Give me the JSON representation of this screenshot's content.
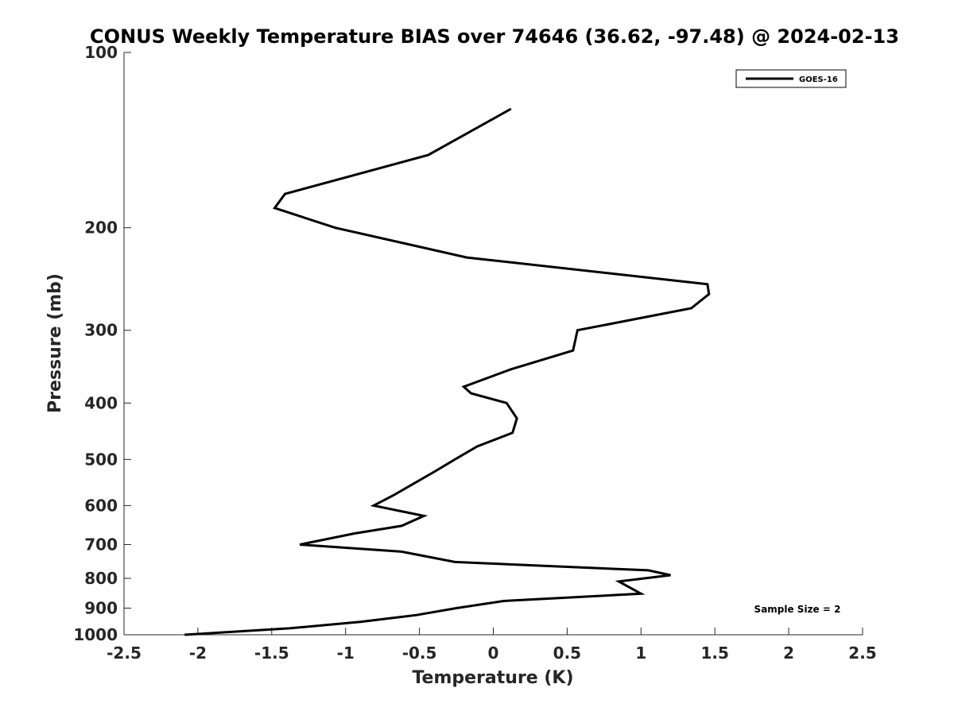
{
  "chart_data": {
    "type": "line",
    "title": "CONUS Weekly Temperature BIAS over 74646 (36.62, -97.48) @ 2024-02-13",
    "xlabel": "Temperature (K)",
    "ylabel": "Pressure (mb)",
    "xlim": [
      -2.5,
      2.5
    ],
    "ylim": [
      100,
      1000
    ],
    "y_scale": "log",
    "y_reversed": true,
    "x_ticks": [
      -2.5,
      -2,
      -1.5,
      -1,
      -0.5,
      0,
      0.5,
      1,
      1.5,
      2,
      2.5
    ],
    "x_tick_labels": [
      "-2.5",
      "-2",
      "-1.5",
      "-1",
      "-0.5",
      "0",
      "0.5",
      "1",
      "1.5",
      "2",
      "2.5"
    ],
    "y_ticks": [
      100,
      200,
      300,
      400,
      500,
      600,
      700,
      800,
      900,
      1000
    ],
    "y_tick_labels": [
      "100",
      "200",
      "300",
      "400",
      "500",
      "600",
      "700",
      "800",
      "900",
      "1000"
    ],
    "grid": false,
    "legend_position": "top-right",
    "annotation": "Sample Size = 2",
    "series": [
      {
        "name": "GOES-16",
        "color": "#000000",
        "points": [
          [
            0.12,
            125
          ],
          [
            -0.44,
            150
          ],
          [
            -1.41,
            175
          ],
          [
            -1.48,
            185
          ],
          [
            -1.07,
            200
          ],
          [
            -0.18,
            225
          ],
          [
            1.45,
            250
          ],
          [
            1.46,
            260
          ],
          [
            1.34,
            275
          ],
          [
            0.57,
            300
          ],
          [
            0.54,
            325
          ],
          [
            0.12,
            350
          ],
          [
            -0.2,
            375
          ],
          [
            -0.15,
            385
          ],
          [
            0.09,
            400
          ],
          [
            0.16,
            425
          ],
          [
            0.13,
            450
          ],
          [
            -0.11,
            475
          ],
          [
            -0.26,
            500
          ],
          [
            -0.4,
            525
          ],
          [
            -0.67,
            575
          ],
          [
            -0.81,
            600
          ],
          [
            -0.47,
            625
          ],
          [
            -0.62,
            650
          ],
          [
            -0.94,
            670
          ],
          [
            -1.31,
            700
          ],
          [
            -0.62,
            720
          ],
          [
            -0.26,
            750
          ],
          [
            1.05,
            775
          ],
          [
            1.2,
            790
          ],
          [
            0.85,
            810
          ],
          [
            1.0,
            850
          ],
          [
            0.07,
            875
          ],
          [
            -0.25,
            900
          ],
          [
            -0.52,
            925
          ],
          [
            -0.9,
            950
          ],
          [
            -1.38,
            975
          ],
          [
            -2.09,
            1000
          ]
        ]
      }
    ]
  }
}
